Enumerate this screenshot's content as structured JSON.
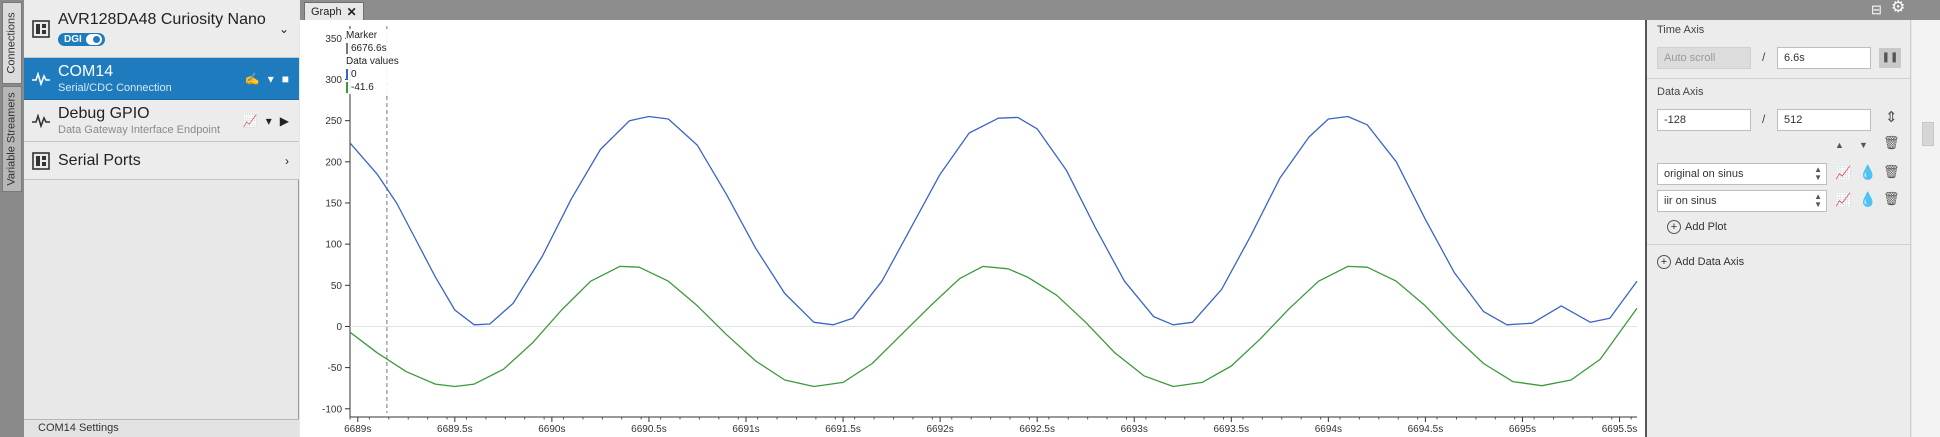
{
  "vertical_tabs": [
    {
      "label": "Connections"
    },
    {
      "label": "Variable Streamers"
    }
  ],
  "connections": {
    "device": {
      "name": "AVR128DA48 Curiosity Nano",
      "badge": "DGI"
    },
    "com": {
      "name": "COM14",
      "subtitle": "Serial/CDC Connection"
    },
    "gpio": {
      "name": "Debug GPIO",
      "subtitle": "Data Gateway Interface Endpoint"
    },
    "serial": {
      "name": "Serial Ports"
    },
    "settings_label": "COM14 Settings"
  },
  "graph_tab": {
    "label": "Graph",
    "close": "✕"
  },
  "legend": {
    "marker_title": "Marker",
    "marker_value": "6676.6s",
    "data_title": "Data values",
    "values": [
      "0",
      "-41.6"
    ]
  },
  "colors": {
    "series_blue": "#3a64c8",
    "series_green": "#3a9a3a",
    "accent": "#1e7bbd"
  },
  "time_axis": {
    "title": "Time Axis",
    "autoscroll_label": "Auto scroll",
    "window": "6.6s"
  },
  "data_axis": {
    "title": "Data Axis",
    "min": "-128",
    "max": "512",
    "plots": [
      "original on sinus",
      "iir on sinus"
    ],
    "add_plot": "Add Plot"
  },
  "add_data_axis": "Add Data Axis",
  "chart_data": {
    "type": "line",
    "ylim": [
      -110,
      365
    ],
    "xlim": [
      6688.96,
      6695.59
    ],
    "y_ticks": [
      -100,
      -50,
      0,
      50,
      100,
      150,
      200,
      250,
      300,
      350
    ],
    "x_ticks": [
      {
        "v": 6689.0,
        "label": "6689s"
      },
      {
        "v": 6689.5,
        "label": "6689.5s"
      },
      {
        "v": 6690.0,
        "label": "6690s"
      },
      {
        "v": 6690.5,
        "label": "6690.5s"
      },
      {
        "v": 6691.0,
        "label": "6691s"
      },
      {
        "v": 6691.5,
        "label": "6691.5s"
      },
      {
        "v": 6692.0,
        "label": "6692s"
      },
      {
        "v": 6692.5,
        "label": "6692.5s"
      },
      {
        "v": 6693.0,
        "label": "6693s"
      },
      {
        "v": 6693.5,
        "label": "6693.5s"
      },
      {
        "v": 6694.0,
        "label": "6694s"
      },
      {
        "v": 6694.5,
        "label": "6694.5s"
      },
      {
        "v": 6695.0,
        "label": "6695s"
      },
      {
        "v": 6695.5,
        "label": "6695.5s"
      }
    ],
    "marker_x": 6689.15,
    "series": [
      {
        "values": [
          [
            6688.96,
            223
          ],
          [
            6689.1,
            185
          ],
          [
            6689.2,
            150
          ],
          [
            6689.3,
            105
          ],
          [
            6689.4,
            60
          ],
          [
            6689.5,
            20
          ],
          [
            6689.6,
            2
          ],
          [
            6689.68,
            3
          ],
          [
            6689.8,
            28
          ],
          [
            6689.95,
            85
          ],
          [
            6690.1,
            155
          ],
          [
            6690.25,
            215
          ],
          [
            6690.4,
            250
          ],
          [
            6690.5,
            255
          ],
          [
            6690.6,
            252
          ],
          [
            6690.75,
            220
          ],
          [
            6690.9,
            160
          ],
          [
            6691.05,
            95
          ],
          [
            6691.2,
            40
          ],
          [
            6691.35,
            5
          ],
          [
            6691.45,
            2
          ],
          [
            6691.55,
            10
          ],
          [
            6691.7,
            55
          ],
          [
            6691.85,
            120
          ],
          [
            6692.0,
            185
          ],
          [
            6692.15,
            235
          ],
          [
            6692.3,
            253
          ],
          [
            6692.4,
            254
          ],
          [
            6692.5,
            240
          ],
          [
            6692.65,
            190
          ],
          [
            6692.8,
            120
          ],
          [
            6692.95,
            55
          ],
          [
            6693.1,
            12
          ],
          [
            6693.2,
            2
          ],
          [
            6693.3,
            5
          ],
          [
            6693.45,
            45
          ],
          [
            6693.6,
            110
          ],
          [
            6693.75,
            180
          ],
          [
            6693.9,
            230
          ],
          [
            6694.0,
            252
          ],
          [
            6694.1,
            255
          ],
          [
            6694.2,
            245
          ],
          [
            6694.35,
            200
          ],
          [
            6694.5,
            130
          ],
          [
            6694.65,
            65
          ],
          [
            6694.8,
            18
          ],
          [
            6694.92,
            2
          ],
          [
            6695.05,
            4
          ],
          [
            6695.2,
            25
          ],
          [
            6695.35,
            5
          ],
          [
            6695.45,
            10
          ],
          [
            6695.59,
            55
          ]
        ]
      },
      {
        "values": [
          [
            6688.96,
            -7
          ],
          [
            6689.1,
            -32
          ],
          [
            6689.25,
            -55
          ],
          [
            6689.4,
            -70
          ],
          [
            6689.5,
            -73
          ],
          [
            6689.6,
            -70
          ],
          [
            6689.75,
            -52
          ],
          [
            6689.9,
            -20
          ],
          [
            6690.05,
            20
          ],
          [
            6690.2,
            55
          ],
          [
            6690.35,
            73
          ],
          [
            6690.45,
            72
          ],
          [
            6690.6,
            55
          ],
          [
            6690.75,
            25
          ],
          [
            6690.9,
            -10
          ],
          [
            6691.05,
            -42
          ],
          [
            6691.2,
            -65
          ],
          [
            6691.35,
            -73
          ],
          [
            6691.5,
            -68
          ],
          [
            6691.65,
            -45
          ],
          [
            6691.8,
            -10
          ],
          [
            6691.95,
            25
          ],
          [
            6692.1,
            58
          ],
          [
            6692.22,
            73
          ],
          [
            6692.35,
            70
          ],
          [
            6692.45,
            60
          ],
          [
            6692.6,
            38
          ],
          [
            6692.75,
            5
          ],
          [
            6692.9,
            -32
          ],
          [
            6693.05,
            -60
          ],
          [
            6693.2,
            -73
          ],
          [
            6693.35,
            -68
          ],
          [
            6693.5,
            -48
          ],
          [
            6693.65,
            -15
          ],
          [
            6693.8,
            22
          ],
          [
            6693.95,
            55
          ],
          [
            6694.1,
            73
          ],
          [
            6694.2,
            72
          ],
          [
            6694.35,
            55
          ],
          [
            6694.5,
            25
          ],
          [
            6694.65,
            -12
          ],
          [
            6694.8,
            -45
          ],
          [
            6694.95,
            -67
          ],
          [
            6695.1,
            -72
          ],
          [
            6695.25,
            -65
          ],
          [
            6695.4,
            -40
          ],
          [
            6695.59,
            22
          ]
        ]
      }
    ]
  }
}
